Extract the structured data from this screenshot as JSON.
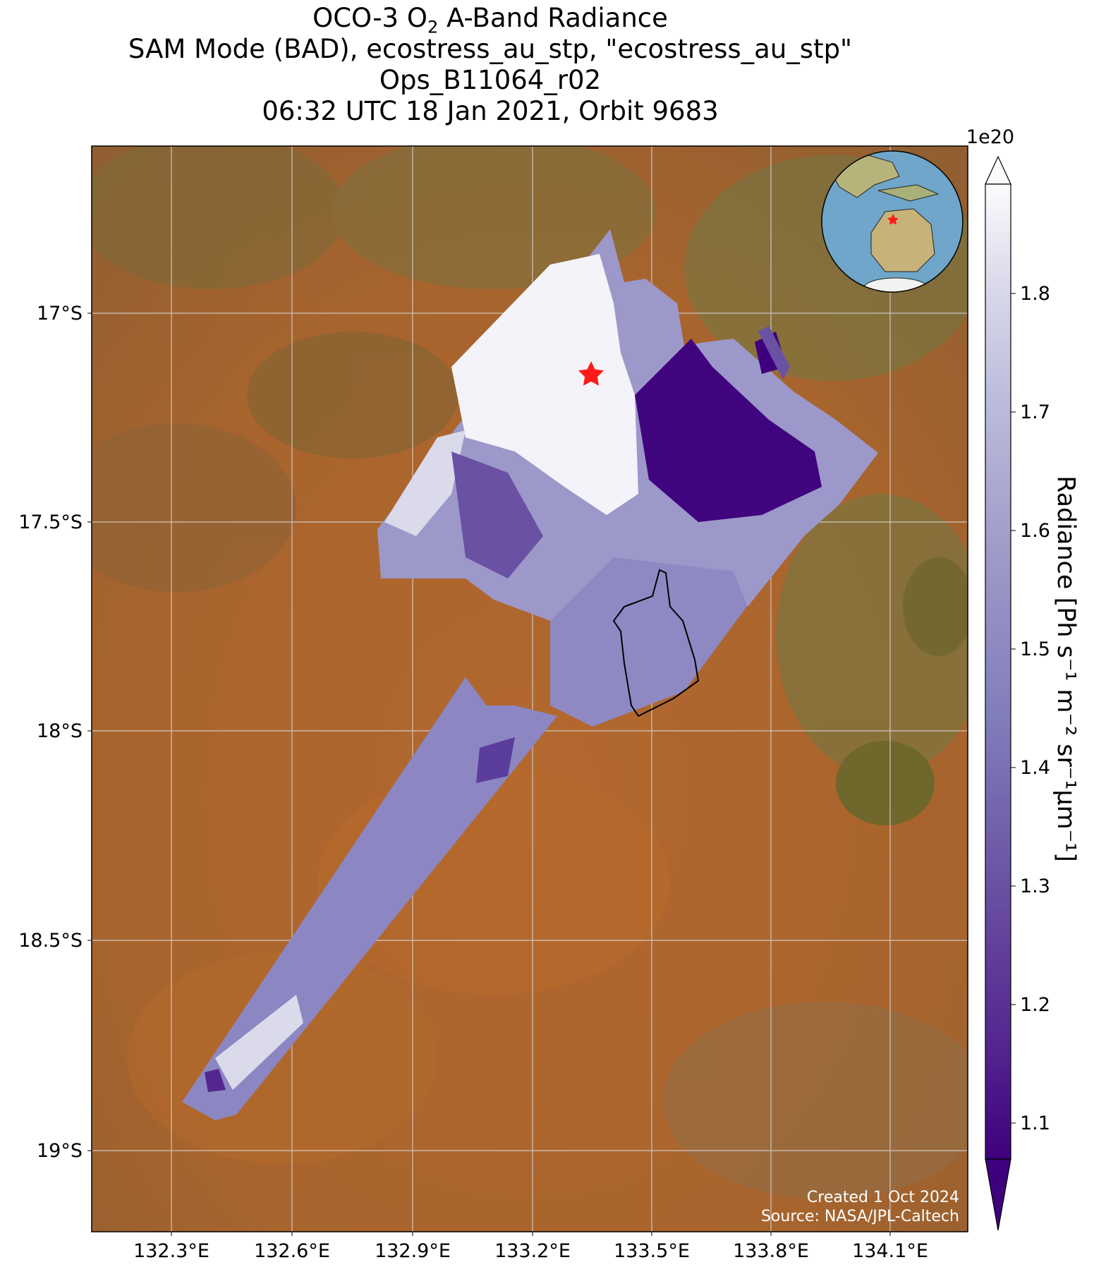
{
  "title": {
    "line1_prefix": "OCO-3 O",
    "line1_sub": "2",
    "line1_suffix": " A-Band Radiance",
    "line2": "SAM Mode (BAD), ecostress_au_stp, \"ecostress_au_stp\"",
    "line3": "Ops_B11064_r02",
    "line4": "06:32 UTC 18 Jan 2021, Orbit 9683"
  },
  "axes": {
    "lat_ticks": [
      "17°S",
      "17.5°S",
      "18°S",
      "18.5°S",
      "19°S"
    ],
    "lon_ticks": [
      "132.3°E",
      "132.6°E",
      "132.9°E",
      "133.2°E",
      "133.5°E",
      "133.8°E",
      "134.1°E"
    ]
  },
  "colorbar": {
    "exponent": "1e20",
    "label": "Radiance [Ph s⁻¹ m⁻² sr⁻¹μm⁻¹]",
    "ticks": [
      "1.8",
      "1.7",
      "1.6",
      "1.5",
      "1.4",
      "1.3",
      "1.2",
      "1.1"
    ],
    "colormap": "Purples_r",
    "range": [
      1.04,
      1.88
    ],
    "extend": "both",
    "low_color": "#3f007d",
    "high_color": "#fcfbfd"
  },
  "credits": {
    "line1": "Created 1 Oct 2024",
    "line2": "Source: NASA/JPL-Caltech"
  },
  "map": {
    "background": "satellite imagery",
    "target_marker": "red-star",
    "inset": "orthographic globe centered on Australia with red star marker"
  },
  "colors": {
    "star": "#ff1a1a",
    "grid": "#cccccc",
    "ocean": "#6fa6c9",
    "land": "#c7b27a"
  }
}
